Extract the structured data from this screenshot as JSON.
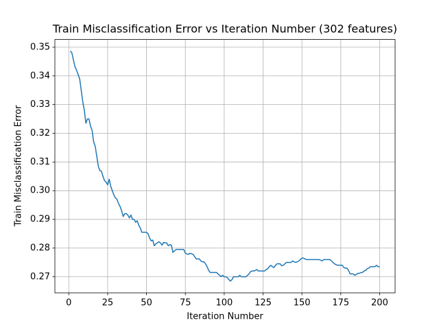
{
  "chart_data": {
    "type": "line",
    "title": "Train Misclassification Error vs Iteration Number (302 features)",
    "x_label": "Iteration Number",
    "y_label": "Train Misclassification Error",
    "color": "#1f77b4",
    "grid": true,
    "x": [
      1,
      2,
      3,
      4,
      5,
      6,
      7,
      8,
      9,
      10,
      11,
      12,
      13,
      14,
      15,
      16,
      17,
      18,
      19,
      20,
      21,
      22,
      23,
      24,
      25,
      26,
      27,
      28,
      29,
      30,
      31,
      32,
      33,
      34,
      35,
      36,
      37,
      38,
      39,
      40,
      41,
      42,
      43,
      44,
      45,
      46,
      47,
      48,
      49,
      50,
      51,
      52,
      53,
      54,
      55,
      56,
      57,
      58,
      59,
      60,
      61,
      62,
      63,
      64,
      65,
      66,
      67,
      68,
      69,
      70,
      71,
      72,
      73,
      74,
      75,
      76,
      77,
      78,
      79,
      80,
      81,
      82,
      83,
      84,
      85,
      86,
      87,
      88,
      89,
      90,
      91,
      92,
      93,
      94,
      95,
      96,
      97,
      98,
      99,
      100,
      101,
      102,
      103,
      104,
      105,
      106,
      107,
      108,
      109,
      110,
      111,
      112,
      113,
      114,
      115,
      116,
      117,
      118,
      119,
      120,
      121,
      122,
      123,
      124,
      125,
      126,
      127,
      128,
      129,
      130,
      131,
      132,
      133,
      134,
      135,
      136,
      137,
      138,
      139,
      140,
      141,
      142,
      143,
      144,
      145,
      146,
      147,
      148,
      149,
      150,
      151,
      152,
      153,
      154,
      155,
      156,
      157,
      158,
      159,
      160,
      161,
      162,
      163,
      164,
      165,
      166,
      167,
      168,
      169,
      170,
      171,
      172,
      173,
      174,
      175,
      176,
      177,
      178,
      179,
      180,
      181,
      182,
      183,
      184,
      185,
      186,
      187,
      188,
      189,
      190,
      191,
      192,
      193,
      194,
      195,
      196,
      197,
      198,
      199,
      200
    ],
    "values": [
      0.3487,
      0.348,
      0.3455,
      0.3432,
      0.342,
      0.3405,
      0.339,
      0.335,
      0.331,
      0.328,
      0.3235,
      0.325,
      0.325,
      0.3225,
      0.321,
      0.317,
      0.3155,
      0.312,
      0.3085,
      0.307,
      0.3068,
      0.305,
      0.3035,
      0.303,
      0.302,
      0.304,
      0.3015,
      0.3,
      0.2985,
      0.2975,
      0.297,
      0.2955,
      0.2945,
      0.293,
      0.291,
      0.292,
      0.292,
      0.2915,
      0.2905,
      0.2915,
      0.29,
      0.29,
      0.289,
      0.2895,
      0.288,
      0.287,
      0.2855,
      0.2855,
      0.2855,
      0.2855,
      0.285,
      0.2835,
      0.2825,
      0.2828,
      0.2808,
      0.2815,
      0.2818,
      0.2822,
      0.2818,
      0.281,
      0.282,
      0.2818,
      0.2818,
      0.2808,
      0.2812,
      0.281,
      0.2785,
      0.279,
      0.2795,
      0.2795,
      0.2795,
      0.2795,
      0.2795,
      0.2795,
      0.2782,
      0.278,
      0.2778,
      0.2782,
      0.278,
      0.2778,
      0.277,
      0.2762,
      0.2762,
      0.2762,
      0.2755,
      0.2752,
      0.2752,
      0.2745,
      0.2735,
      0.2722,
      0.2715,
      0.2715,
      0.2715,
      0.2715,
      0.2715,
      0.271,
      0.2705,
      0.27,
      0.2705,
      0.27,
      0.27,
      0.2697,
      0.269,
      0.2685,
      0.269,
      0.27,
      0.27,
      0.27,
      0.27,
      0.2705,
      0.27,
      0.27,
      0.27,
      0.27,
      0.2705,
      0.271,
      0.2718,
      0.272,
      0.272,
      0.2722,
      0.2725,
      0.272,
      0.272,
      0.272,
      0.272,
      0.272,
      0.2725,
      0.2728,
      0.2735,
      0.274,
      0.2735,
      0.2732,
      0.274,
      0.2745,
      0.2745,
      0.2745,
      0.2738,
      0.274,
      0.2745,
      0.275,
      0.275,
      0.275,
      0.275,
      0.2755,
      0.2752,
      0.275,
      0.2752,
      0.2755,
      0.276,
      0.2765,
      0.2765,
      0.2762,
      0.276,
      0.276,
      0.276,
      0.276,
      0.276,
      0.276,
      0.276,
      0.276,
      0.276,
      0.2758,
      0.2755,
      0.276,
      0.276,
      0.276,
      0.276,
      0.276,
      0.2755,
      0.275,
      0.2745,
      0.2742,
      0.274,
      0.274,
      0.274,
      0.274,
      0.2732,
      0.273,
      0.273,
      0.2722,
      0.271,
      0.271,
      0.271,
      0.2705,
      0.2708,
      0.2712,
      0.2712,
      0.2715,
      0.2715,
      0.272,
      0.2722,
      0.2728,
      0.273,
      0.2735,
      0.2735,
      0.2735,
      0.2735,
      0.274,
      0.2735,
      0.2735
    ],
    "xlim": [
      -8.95,
      209.95
    ],
    "xticks": [
      0,
      25,
      50,
      75,
      100,
      125,
      150,
      175,
      200
    ],
    "ylim": [
      0.2644,
      0.3527
    ],
    "yticks": [
      0.27,
      0.28,
      0.29,
      {
        "value": 0.3,
        "label": "0.30"
      },
      0.31,
      0.32,
      0.33,
      0.34,
      0.35
    ]
  }
}
